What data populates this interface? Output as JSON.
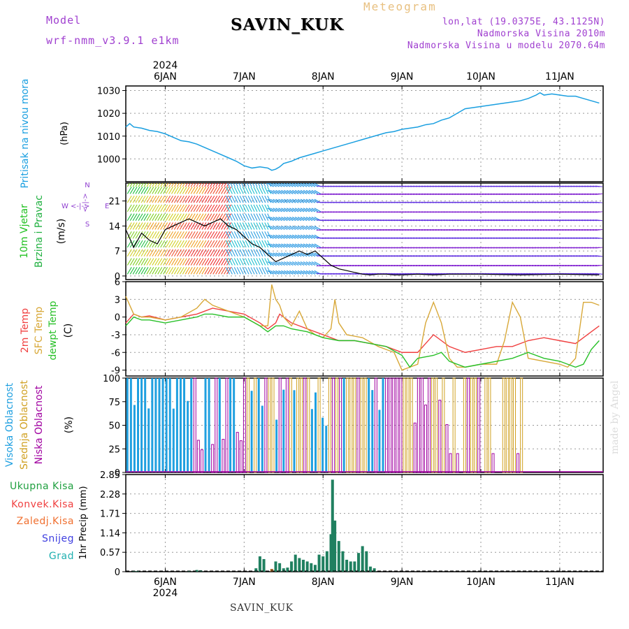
{
  "header": {
    "model_label": "Model",
    "model_version": "wrf-nmm_v3.9.1 e1km",
    "station": "SAVIN_KUK",
    "title": "Meteogram",
    "lonlat": "lon,lat (19.0375E, 43.1125N)",
    "altitude": "Nadmorska Visina 2010m",
    "altitude_model": "Nadmorska Visina u modelu 2070.64m"
  },
  "footer": {
    "station": "SAVIN_KUK"
  },
  "watermark": "made by Angel",
  "colors": {
    "pressure": "#1a9fe0",
    "temp2m": "#f04040",
    "sfc": "#d8a838",
    "dewpt": "#28c028",
    "cloud_high": "#20a0e0",
    "cloud_mid": "#d0a020",
    "cloud_low": "#a000a0",
    "precip_total": "#20a040",
    "precip_conv": "#f04040",
    "precip_frozen": "#f07030",
    "snow": "#4040e0",
    "graupel": "#20b0b0",
    "wind_label": "#20c020",
    "wind_label2": "#20b040",
    "compass": "#9040d0",
    "text_purple": "#a040d0",
    "text_gold": "#e8c080"
  },
  "chart_data": [
    {
      "type": "line",
      "panel": "pressure",
      "year": "2024",
      "x_ticks": [
        "6JAN",
        "7JAN",
        "8JAN",
        "9JAN",
        "10JAN",
        "11JAN"
      ],
      "ylabel": "Pritisak na nivou mora",
      "yunit": "(hPa)",
      "ylim": [
        990,
        1032
      ],
      "yticks": [
        1000,
        1010,
        1020,
        1030
      ],
      "grid": true,
      "x_days": [
        5.5,
        5.55,
        5.6,
        5.7,
        5.8,
        5.9,
        6.0,
        6.1,
        6.2,
        6.3,
        6.4,
        6.5,
        6.6,
        6.7,
        6.8,
        6.9,
        7.0,
        7.1,
        7.2,
        7.3,
        7.35,
        7.4,
        7.45,
        7.5,
        7.6,
        7.7,
        7.8,
        7.9,
        8.0,
        8.1,
        8.2,
        8.3,
        8.4,
        8.5,
        8.6,
        8.7,
        8.8,
        8.9,
        9.0,
        9.1,
        9.2,
        9.3,
        9.4,
        9.5,
        9.6,
        9.7,
        9.8,
        9.9,
        10.0,
        10.1,
        10.2,
        10.3,
        10.4,
        10.5,
        10.6,
        10.7,
        10.75,
        10.8,
        10.9,
        11.0,
        11.1,
        11.2,
        11.3,
        11.4,
        11.5
      ],
      "values": [
        1014,
        1015.5,
        1014,
        1013.5,
        1012.5,
        1012,
        1011,
        1009.5,
        1008,
        1007.5,
        1006.5,
        1005,
        1003.5,
        1002,
        1000.5,
        999,
        997,
        996,
        996.5,
        996,
        995,
        995.5,
        996.5,
        998,
        999,
        1000.5,
        1001.5,
        1002.5,
        1003.5,
        1004.5,
        1005.5,
        1006.5,
        1007.5,
        1008.5,
        1009.5,
        1010.5,
        1011.5,
        1012,
        1013,
        1013.5,
        1014,
        1015,
        1015.5,
        1017,
        1018,
        1020,
        1022,
        1022.5,
        1023,
        1023.5,
        1024,
        1024.5,
        1025,
        1025.5,
        1026.5,
        1028,
        1029,
        1028,
        1028.5,
        1028,
        1027.5,
        1027.5,
        1026.5,
        1025.5,
        1024.5
      ]
    },
    {
      "type": "line",
      "panel": "wind",
      "ylabel": "10m Vjetar",
      "ylabel2": "Brzina i Pravac",
      "yunit": "(m/s)",
      "ylim": [
        -1,
        26
      ],
      "yticks": [
        0,
        7,
        14,
        21
      ],
      "compass": {
        "w": "W",
        "e": "E",
        "n": "N",
        "s": "S",
        "arrow": "<-|->",
        "arrow_v": "<-|->"
      },
      "x_days": [
        5.5,
        5.6,
        5.7,
        5.8,
        5.9,
        6.0,
        6.1,
        6.2,
        6.3,
        6.4,
        6.5,
        6.6,
        6.7,
        6.8,
        6.9,
        7.0,
        7.1,
        7.2,
        7.3,
        7.4,
        7.5,
        7.6,
        7.7,
        7.8,
        7.9,
        8.0,
        8.1,
        8.2,
        8.3,
        8.4,
        8.5,
        8.6,
        8.7,
        8.8,
        8.9,
        9.0,
        9.2,
        9.4,
        9.6,
        9.8,
        10.0,
        10.5,
        11.0,
        11.5
      ],
      "speed": [
        13,
        8,
        12,
        10,
        9,
        13,
        14,
        15,
        16,
        15,
        14,
        15,
        16,
        14,
        13,
        11,
        9,
        8,
        6,
        4,
        5,
        6,
        7,
        6,
        7,
        5,
        3,
        2,
        1.5,
        1,
        0.5,
        0.3,
        0.5,
        0.5,
        0.3,
        0.3,
        0.5,
        0.3,
        0.5,
        0.5,
        0.5,
        0.3,
        0.5,
        0.3
      ]
    },
    {
      "type": "line",
      "panel": "temperature",
      "ylabel": "2m Temp",
      "ylabel2": "SFC Temp",
      "ylabel3": "dewpt Temp",
      "yunit": "(C)",
      "ylim": [
        -10,
        6
      ],
      "yticks": [
        -9,
        -6,
        -3,
        0,
        3,
        6
      ],
      "series": [
        {
          "name": "2m Temp",
          "x": [
            5.5,
            5.6,
            5.7,
            5.8,
            6.0,
            6.2,
            6.4,
            6.5,
            6.6,
            6.8,
            7.0,
            7.2,
            7.3,
            7.4,
            7.45,
            7.5,
            7.6,
            7.7,
            7.8,
            8.0,
            8.2,
            8.4,
            8.6,
            8.8,
            9.0,
            9.2,
            9.3,
            9.4,
            9.5,
            9.6,
            9.8,
            10.0,
            10.2,
            10.4,
            10.6,
            10.8,
            11.0,
            11.2,
            11.4,
            11.5
          ],
          "values": [
            -1,
            0.5,
            0,
            0.2,
            -0.5,
            0,
            0.5,
            1,
            1.5,
            1,
            0.5,
            -1,
            -2,
            -1,
            0.5,
            0,
            -1,
            -1.5,
            -2,
            -3,
            -4,
            -4,
            -4.5,
            -5,
            -6,
            -6,
            -4.5,
            -3,
            -4,
            -5,
            -6,
            -5.5,
            -5,
            -5,
            -4,
            -3.5,
            -4,
            -4.5,
            -2.5,
            -1.5
          ]
        },
        {
          "name": "SFC Temp",
          "x": [
            5.5,
            5.6,
            5.7,
            5.8,
            6.0,
            6.2,
            6.4,
            6.5,
            6.6,
            6.8,
            7.0,
            7.2,
            7.3,
            7.35,
            7.4,
            7.45,
            7.5,
            7.6,
            7.7,
            7.8,
            7.9,
            8.0,
            8.1,
            8.15,
            8.2,
            8.3,
            8.5,
            8.7,
            8.9,
            9.0,
            9.2,
            9.3,
            9.4,
            9.5,
            9.6,
            9.7,
            9.8,
            10.0,
            10.2,
            10.3,
            10.4,
            10.5,
            10.6,
            10.8,
            11.0,
            11.1,
            11.2,
            11.3,
            11.4,
            11.5
          ],
          "values": [
            3.5,
            0.5,
            0,
            0,
            -0.5,
            0,
            1.5,
            3,
            2,
            1,
            0,
            -1.5,
            -1.5,
            5.5,
            3,
            2,
            0,
            -1.5,
            1,
            -2,
            -3,
            -3.5,
            -2,
            3,
            -1,
            -3,
            -3.5,
            -5,
            -6,
            -9,
            -8,
            -1,
            2.5,
            -1,
            -7,
            -8.5,
            -8.5,
            -8,
            -8,
            -4,
            2.5,
            0,
            -7,
            -7.5,
            -8,
            -8.5,
            -7,
            2.5,
            2.5,
            2
          ]
        },
        {
          "name": "dewpt Temp",
          "x": [
            5.5,
            5.6,
            5.7,
            5.8,
            6.0,
            6.2,
            6.4,
            6.5,
            6.6,
            6.8,
            7.0,
            7.2,
            7.3,
            7.4,
            7.5,
            7.6,
            7.8,
            8.0,
            8.2,
            8.4,
            8.6,
            8.8,
            9.0,
            9.1,
            9.2,
            9.4,
            9.5,
            9.6,
            9.8,
            10.0,
            10.2,
            10.4,
            10.6,
            10.8,
            11.0,
            11.2,
            11.3,
            11.4,
            11.5
          ],
          "values": [
            -1.5,
            0,
            -0.5,
            -0.5,
            -1,
            -0.5,
            0,
            0.5,
            0.5,
            0,
            0,
            -1.5,
            -2.5,
            -1.5,
            -1.5,
            -2,
            -2.5,
            -3.5,
            -4,
            -4,
            -4.5,
            -5,
            -6.5,
            -8.5,
            -7,
            -6.5,
            -6,
            -7.5,
            -8.5,
            -8,
            -7.5,
            -7,
            -6,
            -7,
            -7.5,
            -8.5,
            -8,
            -5.5,
            -4
          ]
        }
      ]
    },
    {
      "type": "bar",
      "panel": "clouds",
      "ylabel": "Visoka Oblacnost",
      "ylabel2": "Srednja Oblacnost",
      "ylabel3": "Niska Oblacnost",
      "yunit": "(%)",
      "ylim": [
        0,
        100
      ],
      "yticks": [
        0,
        25,
        50,
        75,
        100
      ]
    },
    {
      "type": "bar",
      "panel": "precip",
      "legend": [
        "Ukupna Kisa",
        "Konvek.Kisa",
        "Zaledj.Kisa",
        "Snijeg",
        "Grad"
      ],
      "ylabel": "1hr Precip (mm)",
      "ylim": [
        0,
        2.85
      ],
      "yticks": [
        0,
        0.57,
        1.14,
        1.71,
        2.28,
        2.85
      ],
      "x_days": [
        5.6,
        5.65,
        6.3,
        6.4,
        6.45,
        7.15,
        7.2,
        7.25,
        7.35,
        7.4,
        7.45,
        7.5,
        7.55,
        7.6,
        7.65,
        7.7,
        7.75,
        7.8,
        7.85,
        7.9,
        7.95,
        8.0,
        8.05,
        8.1,
        8.12,
        8.15,
        8.2,
        8.25,
        8.3,
        8.35,
        8.4,
        8.45,
        8.5,
        8.55,
        8.6,
        8.65
      ],
      "values": [
        0.03,
        0.02,
        0.03,
        0.05,
        0.04,
        0.1,
        0.45,
        0.37,
        0.08,
        0.3,
        0.25,
        0.1,
        0.12,
        0.3,
        0.5,
        0.4,
        0.35,
        0.3,
        0.25,
        0.2,
        0.5,
        0.45,
        0.6,
        1.1,
        2.7,
        1.5,
        0.9,
        0.6,
        0.35,
        0.3,
        0.3,
        0.55,
        0.75,
        0.6,
        0.15,
        0.1
      ]
    }
  ]
}
